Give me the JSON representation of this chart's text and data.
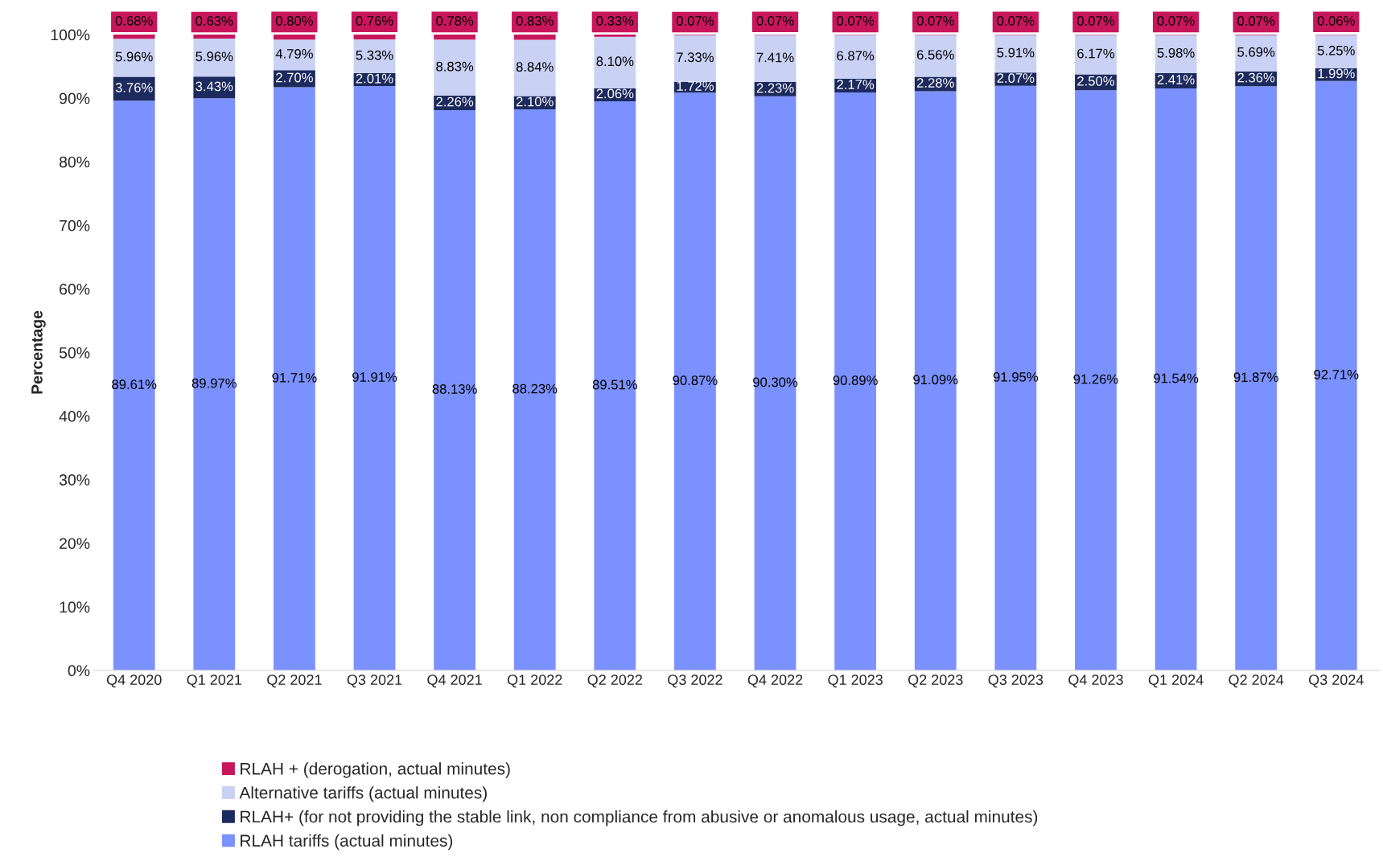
{
  "chart_data": {
    "type": "bar",
    "stacked": true,
    "ylabel": "Percentage",
    "categories": [
      "Q4 2020",
      "Q1 2021",
      "Q2 2021",
      "Q3 2021",
      "Q4 2021",
      "Q1 2022",
      "Q2 2022",
      "Q3 2022",
      "Q4 2022",
      "Q1 2023",
      "Q2 2023",
      "Q3 2023",
      "Q4 2023",
      "Q1 2024",
      "Q2 2024",
      "Q3 2024"
    ],
    "series": [
      {
        "name": "RLAH tariffs (actual minutes)",
        "color": "#7b91ff",
        "values": [
          89.61,
          89.97,
          91.71,
          91.91,
          88.13,
          88.23,
          89.51,
          90.87,
          90.3,
          90.89,
          91.09,
          91.95,
          91.26,
          91.54,
          91.87,
          92.71
        ],
        "value_labels": [
          "89.61%",
          "89.97%",
          "91.71%",
          "91.91%",
          "88.13%",
          "88.23%",
          "89.51%",
          "90.87%",
          "90.30%",
          "90.89%",
          "91.09%",
          "91.95%",
          "91.26%",
          "91.54%",
          "91.87%",
          "92.71%"
        ]
      },
      {
        "name": "RLAH+ (for not providing the stable link, non compliance from abusive or anomalous usage, actual minutes)",
        "color": "#1c2a5e",
        "values": [
          3.76,
          3.43,
          2.7,
          2.01,
          2.26,
          2.1,
          2.06,
          1.72,
          2.23,
          2.17,
          2.28,
          2.07,
          2.5,
          2.41,
          2.36,
          1.99
        ],
        "value_labels": [
          "3.76%",
          "3.43%",
          "2.70%",
          "2.01%",
          "2.26%",
          "2.10%",
          "2.06%",
          "1.72%",
          "2.23%",
          "2.17%",
          "2.28%",
          "2.07%",
          "2.50%",
          "2.41%",
          "2.36%",
          "1.99%"
        ]
      },
      {
        "name": "Alternative tariffs (actual minutes)",
        "color": "#c9d2f5",
        "values": [
          5.96,
          5.96,
          4.79,
          5.33,
          8.83,
          8.84,
          8.1,
          7.33,
          7.41,
          6.87,
          6.56,
          5.91,
          6.17,
          5.98,
          5.69,
          5.25
        ],
        "value_labels": [
          "5.96%",
          "5.96%",
          "4.79%",
          "5.33%",
          "8.83%",
          "8.84%",
          "8.10%",
          "7.33%",
          "7.41%",
          "6.87%",
          "6.56%",
          "5.91%",
          "6.17%",
          "5.98%",
          "5.69%",
          "5.25%"
        ]
      },
      {
        "name": "RLAH + (derogation, actual minutes)",
        "color": "#c8165c",
        "values": [
          0.68,
          0.63,
          0.8,
          0.76,
          0.78,
          0.83,
          0.33,
          0.07,
          0.07,
          0.07,
          0.07,
          0.07,
          0.07,
          0.07,
          0.07,
          0.06
        ],
        "value_labels": [
          "0.68%",
          "0.63%",
          "0.80%",
          "0.76%",
          "0.78%",
          "0.83%",
          "0.33%",
          "0.07%",
          "0.07%",
          "0.07%",
          "0.07%",
          "0.07%",
          "0.07%",
          "0.07%",
          "0.07%",
          "0.06%"
        ]
      }
    ],
    "ylim": [
      0,
      100
    ],
    "yticks": [
      {
        "value": 0,
        "label": "0%"
      },
      {
        "value": 10,
        "label": "10%"
      },
      {
        "value": 20,
        "label": "20%"
      },
      {
        "value": 30,
        "label": "30%"
      },
      {
        "value": 40,
        "label": "40%"
      },
      {
        "value": 50,
        "label": "50%"
      },
      {
        "value": 60,
        "label": "60%"
      },
      {
        "value": 70,
        "label": "70%"
      },
      {
        "value": 80,
        "label": "80%"
      },
      {
        "value": 90,
        "label": "90%"
      },
      {
        "value": 100,
        "label": "100%"
      }
    ],
    "grid": false,
    "legend": "bottom"
  }
}
